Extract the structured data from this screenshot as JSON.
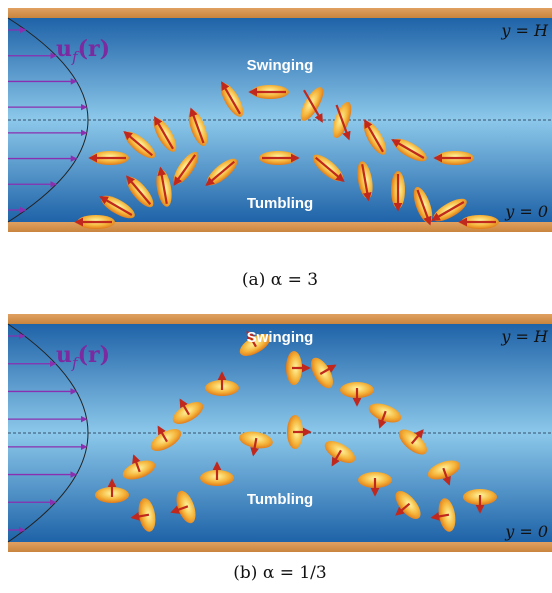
{
  "panels": [
    {
      "velocity_label": {
        "symbol": "u",
        "subscript": "f",
        "argument": "(r)"
      },
      "upper_label": "Swinging",
      "lower_label": "Tumbling",
      "top_boundary": "y = H",
      "bottom_boundary": "y = 0",
      "caption": "(a) α = 3"
    },
    {
      "velocity_label": {
        "symbol": "u",
        "subscript": "f",
        "argument": "(r)"
      },
      "upper_label": "Swinging",
      "lower_label": "Tumbling",
      "top_boundary": "y = H",
      "bottom_boundary": "y = 0",
      "caption": "(b) α = 1/3"
    }
  ]
}
